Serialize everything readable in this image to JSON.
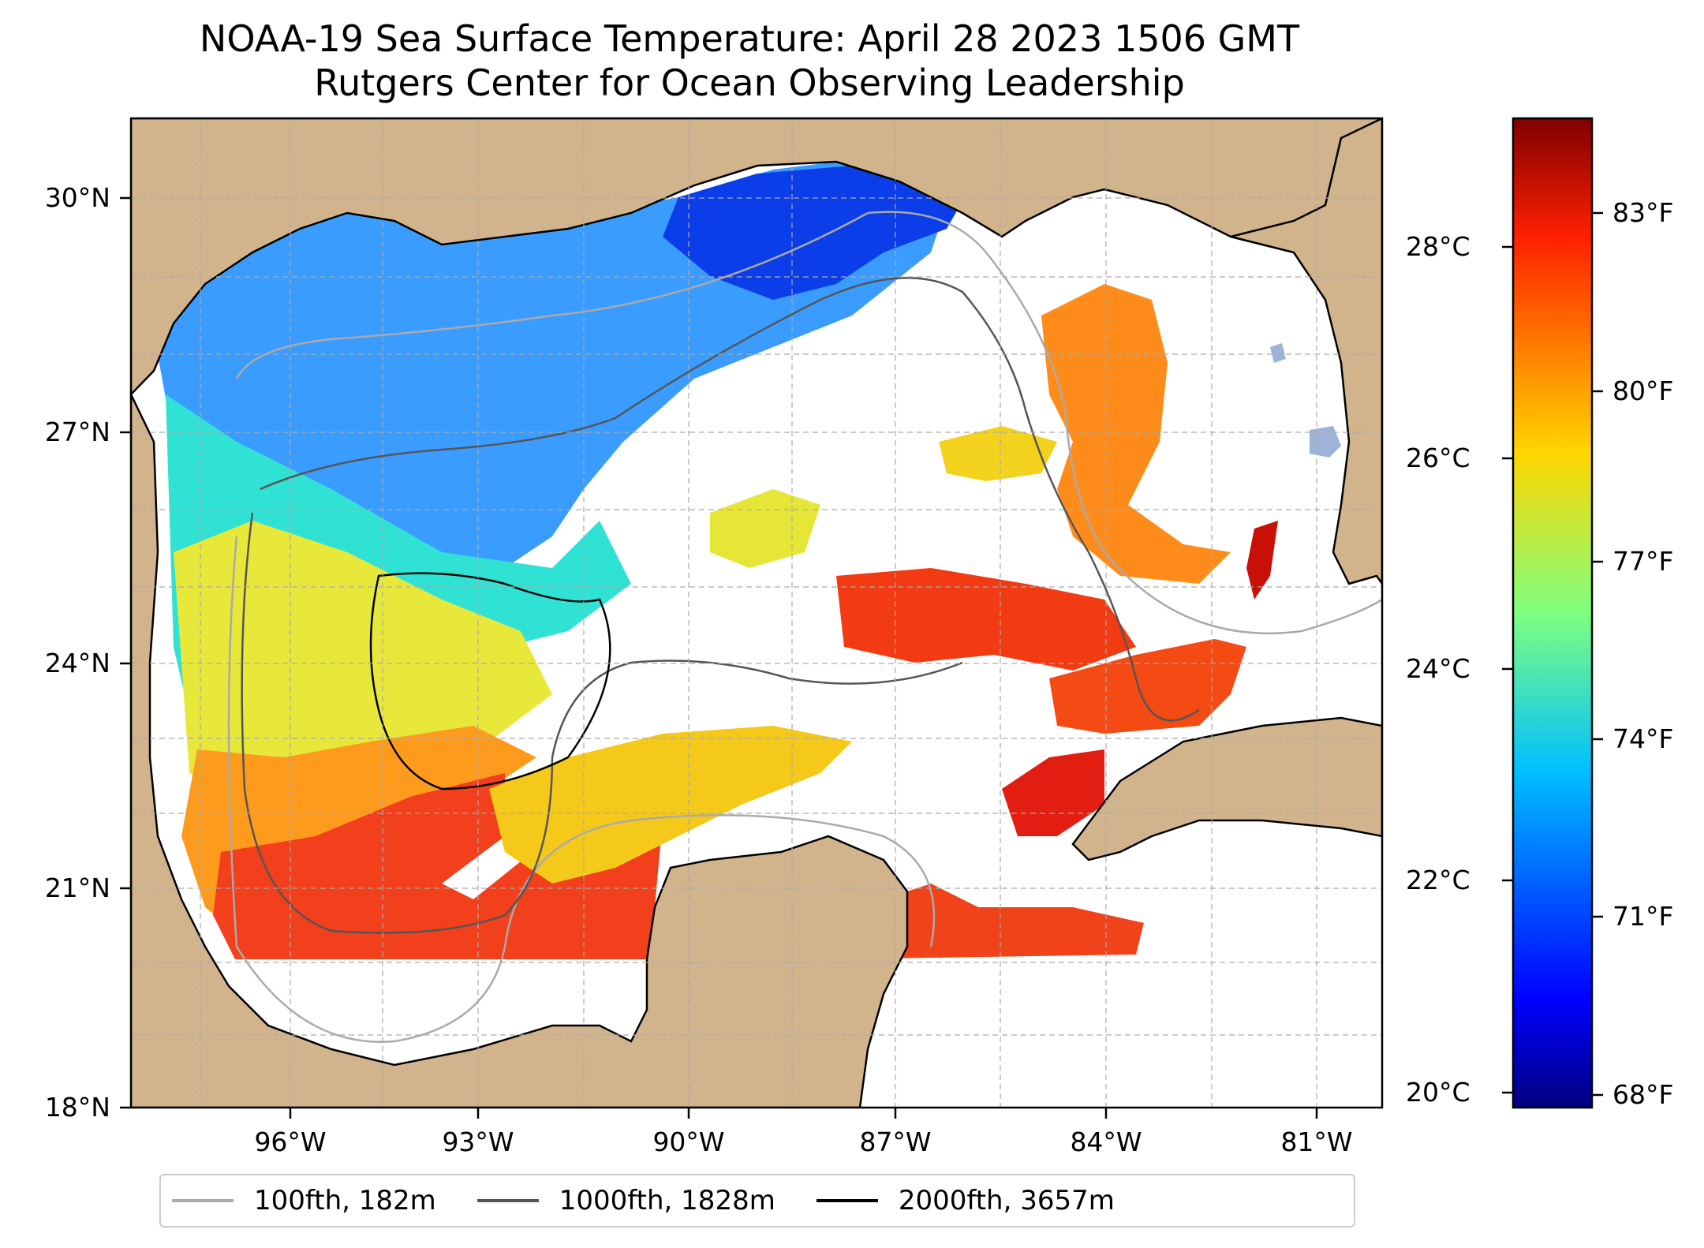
{
  "title_line1": "NOAA-19 Sea Surface Temperature: April 28 2023 1506 GMT",
  "title_line2": "Rutgers Center for Ocean Observing Leadership",
  "lat_ticks": [
    "30°N",
    "27°N",
    "24°N",
    "21°N",
    "18°N"
  ],
  "lon_ticks": [
    "96°W",
    "93°W",
    "90°W",
    "87°W",
    "84°W",
    "81°W"
  ],
  "colorbar": {
    "celsius_ticks": [
      "28°C",
      "26°C",
      "24°C",
      "22°C",
      "20°C"
    ],
    "fahrenheit_ticks": [
      "83°F",
      "80°F",
      "77°F",
      "74°F",
      "71°F",
      "68°F"
    ],
    "colormap": "jet"
  },
  "legend": [
    {
      "label": "100fth, 182m",
      "color": "#aaaaaa"
    },
    {
      "label": "1000fth, 1828m",
      "color": "#555555"
    },
    {
      "label": "2000fth, 3657m",
      "color": "#000000"
    }
  ],
  "colors": {
    "land": "#d2b48c",
    "lake": "#9db3d8",
    "no_data": "#ffffff",
    "grid": "#aaaaaa"
  }
}
